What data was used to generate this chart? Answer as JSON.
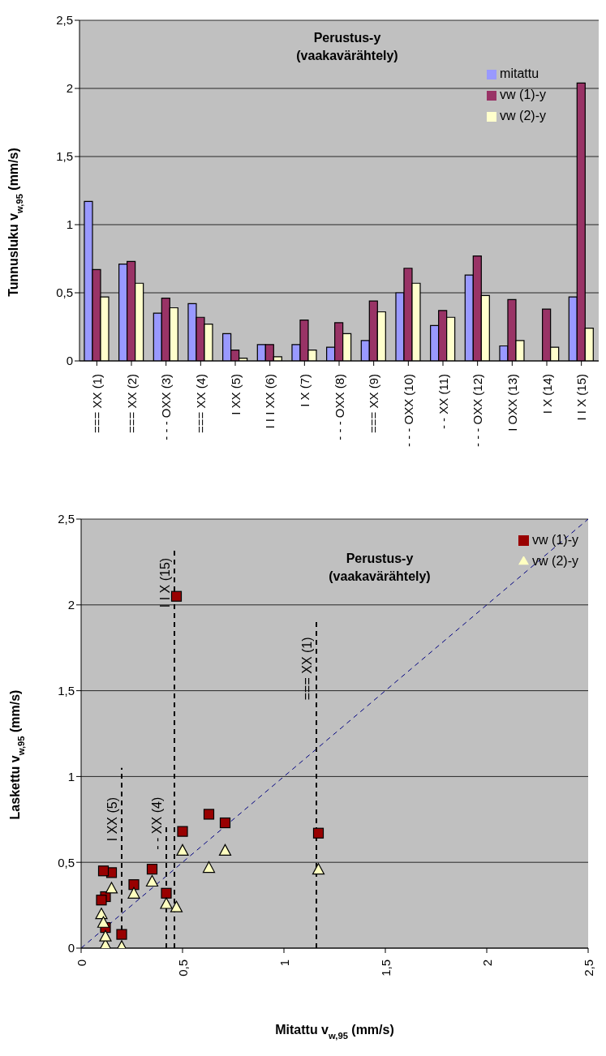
{
  "chart_data": [
    {
      "type": "bar",
      "title": "Perustus-y",
      "subtitle": "(vaakavärähtely)",
      "ylabel": "Tunnusluku  v$_{w,95}$ (mm/s)",
      "categories": [
        "=== XX (1)",
        "=== XX (2)",
        "- - - OXX (3)",
        "=== XX (4)",
        "I XX (5)",
        "I I I XX (6)",
        "I X (7)",
        "- - - OXX (8)",
        "=== XX (9)",
        "- - - OXX (10)",
        "- - XX (11)",
        "- - - OXX (12)",
        "I OXX (13)",
        "I X (14)",
        "I I X (15)"
      ],
      "series": [
        {
          "name": "mitattu",
          "color": "#9999ff",
          "values": [
            1.17,
            0.71,
            0.35,
            0.42,
            0.2,
            0.12,
            0.12,
            0.1,
            0.15,
            0.5,
            0.26,
            0.63,
            0.11,
            null,
            0.47
          ]
        },
        {
          "name": "vw (1)-y",
          "color": "#993366",
          "values": [
            0.67,
            0.73,
            0.46,
            0.32,
            0.08,
            0.12,
            0.3,
            0.28,
            0.44,
            0.68,
            0.37,
            0.77,
            0.45,
            0.38,
            2.04
          ]
        },
        {
          "name": "vw (2)-y",
          "color": "#ffffcc",
          "values": [
            0.47,
            0.57,
            0.39,
            0.27,
            0.02,
            0.03,
            0.08,
            0.2,
            0.36,
            0.57,
            0.32,
            0.48,
            0.15,
            0.1,
            0.24
          ]
        }
      ],
      "ylim": [
        0,
        2.5
      ],
      "yticks": [
        {
          "value": 0,
          "label": "0"
        },
        {
          "value": 0.5,
          "label": "0,5"
        },
        {
          "value": 1,
          "label": "1"
        },
        {
          "value": 1.5,
          "label": "1,5"
        },
        {
          "value": 2,
          "label": "2"
        },
        {
          "value": 2.5,
          "label": "2,5"
        }
      ],
      "grid": "y",
      "legend": "top right"
    },
    {
      "type": "scatter",
      "title": "Perustus-y",
      "subtitle": "(vaakavärähtely)",
      "xlabel": "Mitattu  v$_{w,95}$ (mm/s)",
      "ylabel": "Laskettu  v$_{w,95}$ (mm/s)",
      "series": [
        {
          "name": "vw (1)-y",
          "color": "#990000",
          "marker": "square",
          "x": [
            1.17,
            0.71,
            0.35,
            0.42,
            0.2,
            0.12,
            0.12,
            0.1,
            0.15,
            0.5,
            0.26,
            0.63,
            0.11,
            0.47
          ],
          "values": [
            0.67,
            0.73,
            0.46,
            0.32,
            0.08,
            0.12,
            0.3,
            0.28,
            0.44,
            0.68,
            0.37,
            0.78,
            0.45,
            2.05
          ]
        },
        {
          "name": "vw (2)-y",
          "color": "#ffffc0",
          "marker": "triangle",
          "x": [
            1.17,
            0.71,
            0.35,
            0.42,
            0.2,
            0.12,
            0.12,
            0.1,
            0.15,
            0.5,
            0.26,
            0.63,
            0.11,
            0.47
          ],
          "values": [
            0.46,
            0.57,
            0.39,
            0.26,
            0.01,
            0.02,
            0.07,
            0.2,
            0.35,
            0.57,
            0.32,
            0.47,
            0.15,
            0.24
          ]
        },
        {
          "type": "line",
          "color": "#000080",
          "line_style": "dashed",
          "marker": "none",
          "x": [
            0,
            2.5
          ],
          "values": [
            0,
            2.5
          ]
        },
        {
          "type": "line",
          "color": "#000000",
          "line_style": "dashed",
          "marker": "none",
          "x": [
            0.2,
            0.2
          ],
          "values": [
            0,
            1.05
          ]
        },
        {
          "type": "line",
          "color": "#000000",
          "line_style": "dashed",
          "marker": "none",
          "x": [
            0.42,
            0.42
          ],
          "values": [
            0,
            0.72
          ]
        },
        {
          "type": "line",
          "color": "#000000",
          "line_style": "dashed",
          "marker": "none",
          "x": [
            0.46,
            0.46
          ],
          "values": [
            0,
            2.32
          ]
        },
        {
          "type": "line",
          "color": "#000000",
          "line_style": "dashed",
          "marker": "none",
          "x": [
            1.16,
            1.16
          ],
          "values": [
            0,
            1.9
          ]
        }
      ],
      "annotations": [
        {
          "text": "I XX (5)",
          "x": 0.2,
          "y": 1.05
        },
        {
          "text": "- - XX (4)",
          "x": 0.42,
          "y": 0.72
        },
        {
          "text": "I I X (15)",
          "x": 0.46,
          "y": 2.32
        },
        {
          "text": "=== XX (1)",
          "x": 1.16,
          "y": 1.9
        }
      ],
      "xlim": [
        0,
        2.5
      ],
      "xticks": [
        {
          "value": 0,
          "label": "0"
        },
        {
          "value": 0.5,
          "label": "0,5"
        },
        {
          "value": 1,
          "label": "1"
        },
        {
          "value": 1.5,
          "label": "1,5"
        },
        {
          "value": 2,
          "label": "2"
        },
        {
          "value": 2.5,
          "label": "2,5"
        }
      ],
      "ylim": [
        0,
        2.5
      ],
      "yticks": [
        {
          "value": 0,
          "label": "0"
        },
        {
          "value": 0.5,
          "label": "0,5"
        },
        {
          "value": 1,
          "label": "1"
        },
        {
          "value": 1.5,
          "label": "1,5"
        },
        {
          "value": 2,
          "label": "2"
        },
        {
          "value": 2.5,
          "label": "2,5"
        }
      ],
      "grid": "y",
      "legend": "top right"
    }
  ]
}
